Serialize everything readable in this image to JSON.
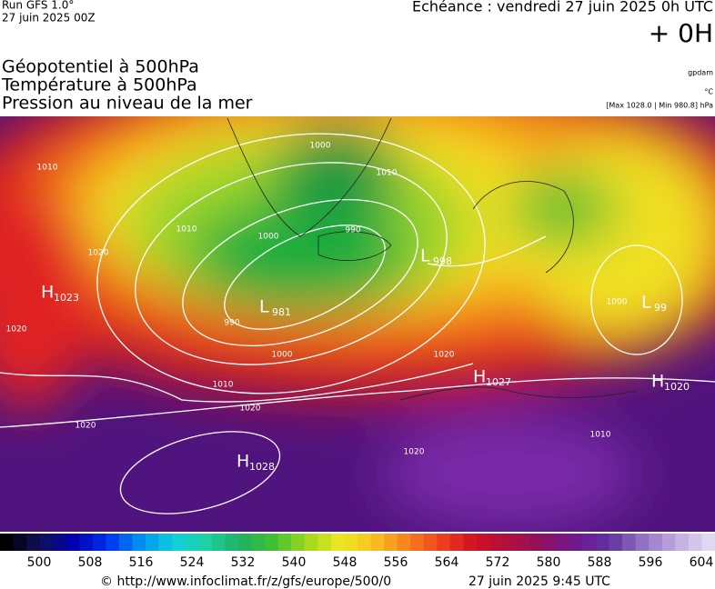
{
  "header": {
    "run": "Run GFS 1.0°",
    "date": "27 juin 2025 00Z",
    "echeance": "Echéance : vendredi 27 juin 2025 0h UTC",
    "offset": "+ 0H",
    "fields": [
      "Géopotentiel à 500hPa",
      "Température à 500hPa",
      "Pression au niveau de la mer"
    ],
    "units": [
      "gpdam",
      "°C",
      "[Max 1028.0 | Min 980.8] hPa"
    ]
  },
  "centers": [
    {
      "kind": "H",
      "value": "1023"
    },
    {
      "kind": "L",
      "value": "981"
    },
    {
      "kind": "L",
      "value": "998"
    },
    {
      "kind": "H",
      "value": "1027"
    },
    {
      "kind": "H",
      "value": "1020"
    },
    {
      "kind": "H",
      "value": "1028"
    },
    {
      "kind": "L",
      "value": "99"
    }
  ],
  "isobar_labels": [
    "1010",
    "1020",
    "1000",
    "990",
    "1000",
    "1010",
    "1010",
    "1020",
    "1020",
    "1010",
    "1000",
    "1020",
    "1020",
    "1010",
    "990",
    "1000",
    "1020"
  ],
  "colorbar": {
    "labels": [
      "500",
      "508",
      "516",
      "524",
      "532",
      "540",
      "548",
      "556",
      "564",
      "572",
      "580",
      "588",
      "596",
      "604"
    ]
  },
  "footer": {
    "source": "© http://www.infoclimat.fr/z/gfs/europe/500/0",
    "time": "27 juin 2025  9:45 UTC"
  }
}
